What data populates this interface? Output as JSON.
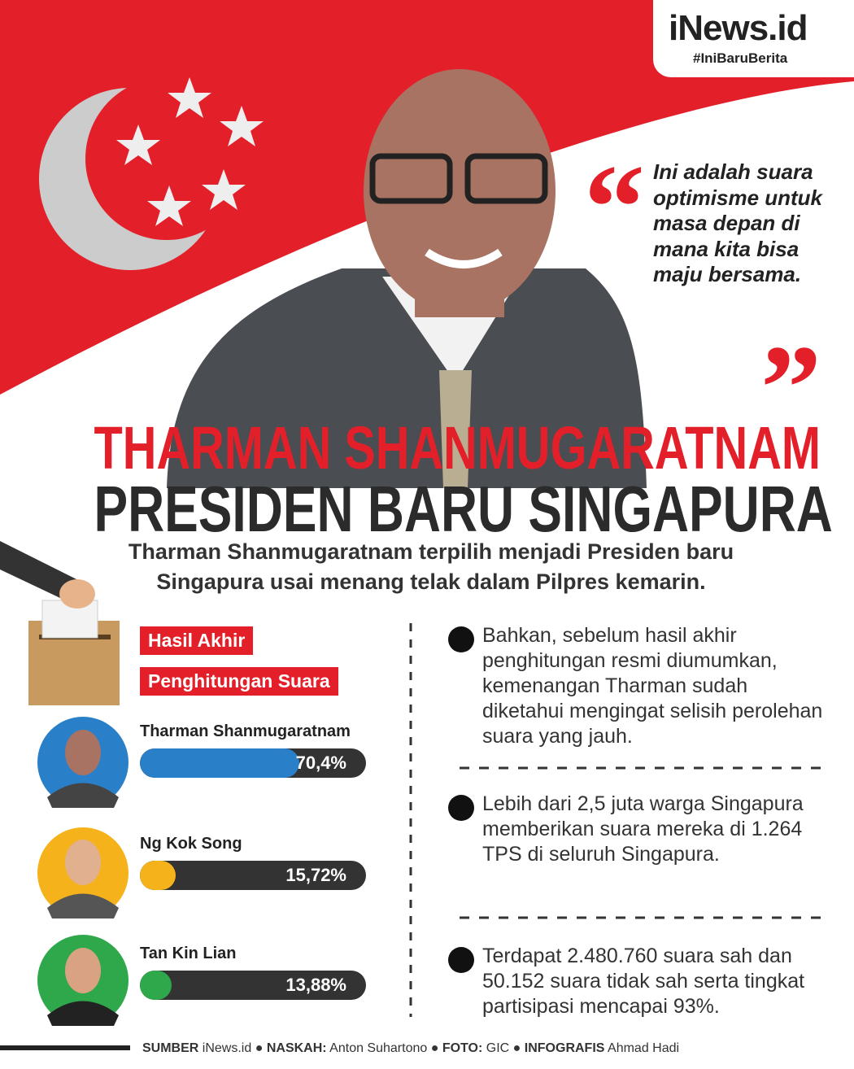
{
  "logo": {
    "brand": "iNews.id",
    "tagline": "#IniBaruBerita"
  },
  "quote": {
    "open_mark": "“",
    "text": "Ini adalah suara optimisme untuk masa depan di mana kita bisa maju bersama.",
    "close_mark": "”"
  },
  "title": {
    "line1": "THARMAN SHANMUGARATNAM",
    "line2": "PRESIDEN BARU SINGAPURA"
  },
  "subtitle": "Tharman Shanmugaratnam terpilih menjadi Presiden baru Singapura usai menang telak dalam Pilpres kemarin.",
  "results": {
    "heading": [
      "Hasil Akhir",
      "Penghitungan Suara"
    ],
    "candidates": [
      {
        "name": "Tharman Shanmugaratnam",
        "value": 70.4,
        "value_label": "70,4%",
        "color": "#2a7fc9"
      },
      {
        "name": "Ng Kok Song",
        "value": 15.72,
        "value_label": "15,72%",
        "color": "#f5b21b"
      },
      {
        "name": "Tan Kin Lian",
        "value": 13.88,
        "value_label": "13,88%",
        "color": "#2ea84a"
      }
    ]
  },
  "facts": [
    "Bahkan, sebelum hasil akhir penghitungan resmi diumumkan, kemenangan Tharman sudah diketahui mengingat selisih perolehan suara yang jauh.",
    "Lebih dari 2,5 juta warga Singapura memberikan suara mereka di 1.264 TPS di seluruh Singapura.",
    "Terdapat 2.480.760 suara sah dan 50.152 suara tidak sah serta tingkat partisipasi mencapai 93%."
  ],
  "footer": [
    {
      "label": "SUMBER",
      "value": "iNews.id"
    },
    {
      "label": "NASKAH:",
      "value": "Anton Suhartono"
    },
    {
      "label": "FOTO:",
      "value": "GIC"
    },
    {
      "label": "INFOGRAFIS",
      "value": "Ahmad Hadi"
    }
  ]
}
